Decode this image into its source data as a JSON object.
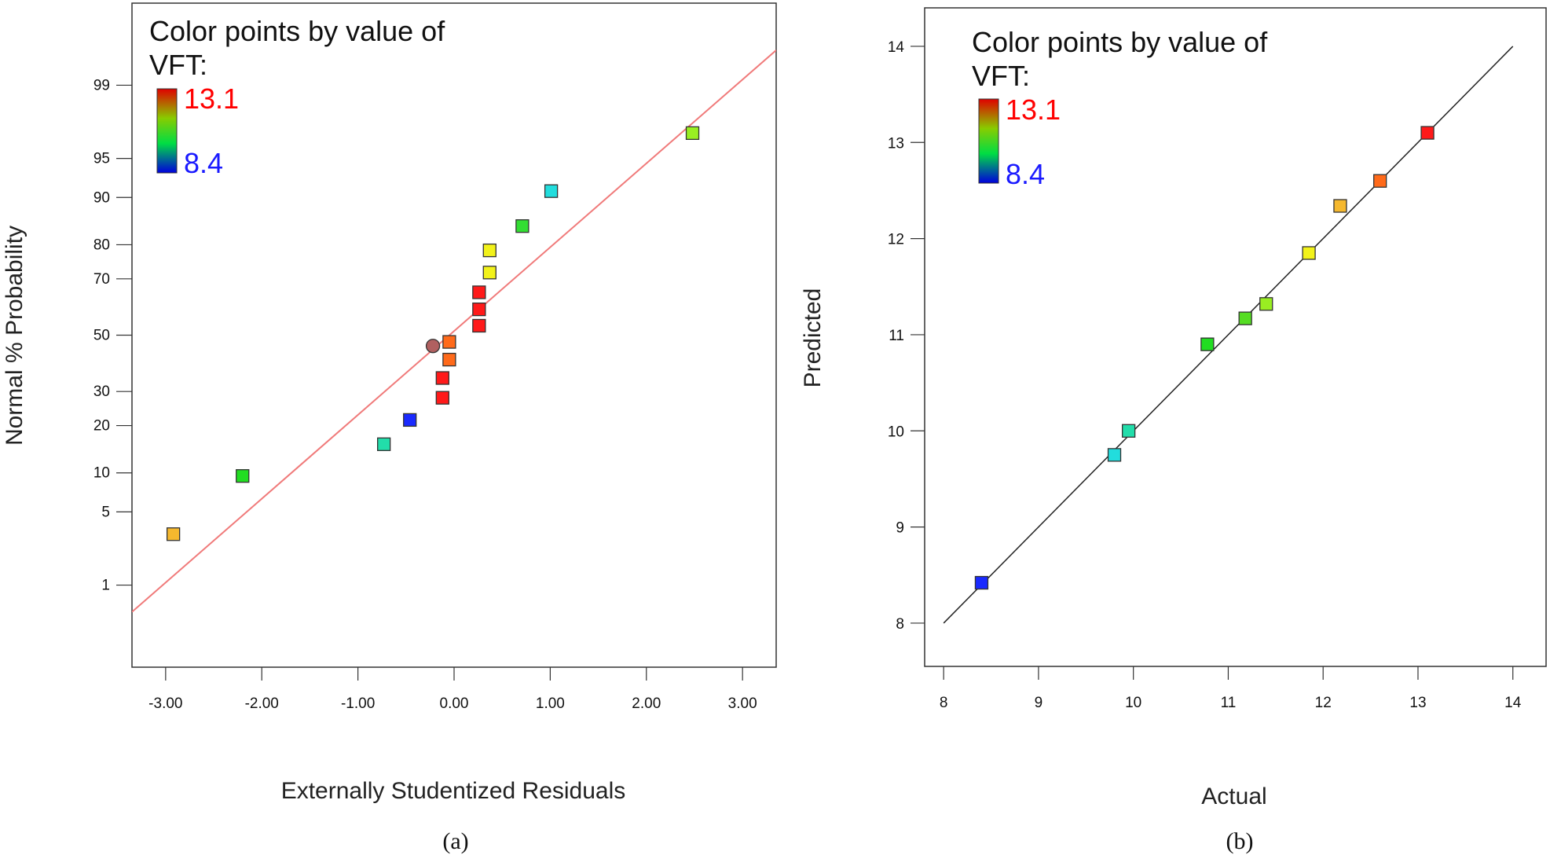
{
  "chart_data": [
    {
      "type": "scatter",
      "subplot": "normal-probability",
      "caption": "(a)",
      "xlabel": "Externally Studentized Residuals",
      "ylabel": "Normal % Probability",
      "xlim": [
        -3.35,
        3.35
      ],
      "x_ticks": [
        -3,
        -2,
        -1,
        0,
        1,
        2,
        3
      ],
      "x_tick_labels": [
        "-3.00",
        "-2.00",
        "-1.00",
        "0.00",
        "1.00",
        "2.00",
        "3.00"
      ],
      "y_ticks": [
        1,
        5,
        10,
        20,
        30,
        50,
        70,
        80,
        90,
        95,
        99
      ],
      "y_tick_labels": [
        "1",
        "5",
        "10",
        "20",
        "30",
        "50",
        "70",
        "80",
        "90",
        "95",
        "99"
      ],
      "ylim_percent": [
        0.1,
        99.9
      ],
      "fit_line": {
        "x": [
          -3.35,
          3.35
        ],
        "percent": [
          0.5,
          99.6
        ],
        "color": "#f07a7a"
      },
      "legend": {
        "title_line1": "Color points by value of",
        "title_line2": "VFT:",
        "max": "13.1",
        "min": "8.4",
        "max_color": "#ff0000",
        "min_color": "#1a1aff"
      },
      "points": [
        {
          "x": -2.92,
          "percent": 3.2,
          "color": "#f5b82e",
          "marker": "square"
        },
        {
          "x": -2.2,
          "percent": 9.5,
          "color": "#22dd22",
          "marker": "square"
        },
        {
          "x": -0.73,
          "percent": 15.5,
          "color": "#22ddaa",
          "marker": "square"
        },
        {
          "x": -0.46,
          "percent": 21.5,
          "color": "#1a2aff",
          "marker": "square"
        },
        {
          "x": -0.12,
          "percent": 28.0,
          "color": "#ff1a1a",
          "marker": "square"
        },
        {
          "x": -0.12,
          "percent": 34.5,
          "color": "#ff1a1a",
          "marker": "square"
        },
        {
          "x": -0.22,
          "percent": 46.0,
          "color": "#b06060",
          "marker": "circle"
        },
        {
          "x": -0.05,
          "percent": 41.0,
          "color": "#ff6a1a",
          "marker": "square"
        },
        {
          "x": -0.05,
          "percent": 47.5,
          "color": "#ff6a1a",
          "marker": "square"
        },
        {
          "x": 0.26,
          "percent": 53.5,
          "color": "#ff1a1a",
          "marker": "square"
        },
        {
          "x": 0.26,
          "percent": 59.5,
          "color": "#ff1a1a",
          "marker": "square"
        },
        {
          "x": 0.26,
          "percent": 65.5,
          "color": "#ff1a1a",
          "marker": "square"
        },
        {
          "x": 0.37,
          "percent": 72.0,
          "color": "#f2f21a",
          "marker": "square"
        },
        {
          "x": 0.37,
          "percent": 78.5,
          "color": "#f2f21a",
          "marker": "square"
        },
        {
          "x": 0.71,
          "percent": 84.5,
          "color": "#33dd33",
          "marker": "square"
        },
        {
          "x": 1.01,
          "percent": 91.0,
          "color": "#22dddd",
          "marker": "square"
        },
        {
          "x": 2.48,
          "percent": 97.0,
          "color": "#99ee22",
          "marker": "square"
        }
      ]
    },
    {
      "type": "scatter",
      "subplot": "predicted-vs-actual",
      "caption": "(b)",
      "xlabel": "Actual",
      "ylabel": "Predicted",
      "xlim": [
        7.8,
        14.35
      ],
      "ylim": [
        7.55,
        14.4
      ],
      "x_ticks": [
        8,
        9,
        10,
        11,
        12,
        13,
        14
      ],
      "x_tick_labels": [
        "8",
        "9",
        "10",
        "11",
        "12",
        "13",
        "14"
      ],
      "y_ticks": [
        8,
        9,
        10,
        11,
        12,
        13,
        14
      ],
      "y_tick_labels": [
        "8",
        "9",
        "10",
        "11",
        "12",
        "13",
        "14"
      ],
      "fit_line": {
        "x": [
          8,
          14
        ],
        "y": [
          8,
          14
        ],
        "color": "#222222"
      },
      "legend": {
        "title_line1": "Color points by value of",
        "title_line2": "VFT:",
        "max": "13.1",
        "min": "8.4",
        "max_color": "#ff0000",
        "min_color": "#1a1aff"
      },
      "points": [
        {
          "x": 8.4,
          "y": 8.42,
          "color": "#1a2aff"
        },
        {
          "x": 9.8,
          "y": 9.75,
          "color": "#22dddd"
        },
        {
          "x": 9.95,
          "y": 10.0,
          "color": "#22ddaa"
        },
        {
          "x": 10.78,
          "y": 10.9,
          "color": "#22dd22"
        },
        {
          "x": 11.18,
          "y": 11.17,
          "color": "#55dd22"
        },
        {
          "x": 11.4,
          "y": 11.32,
          "color": "#99ee22"
        },
        {
          "x": 11.85,
          "y": 11.85,
          "color": "#f2f21a"
        },
        {
          "x": 12.18,
          "y": 12.34,
          "color": "#f5b82e"
        },
        {
          "x": 12.6,
          "y": 12.6,
          "color": "#ff6a1a"
        },
        {
          "x": 13.1,
          "y": 13.1,
          "color": "#ff1a1a"
        }
      ]
    }
  ]
}
